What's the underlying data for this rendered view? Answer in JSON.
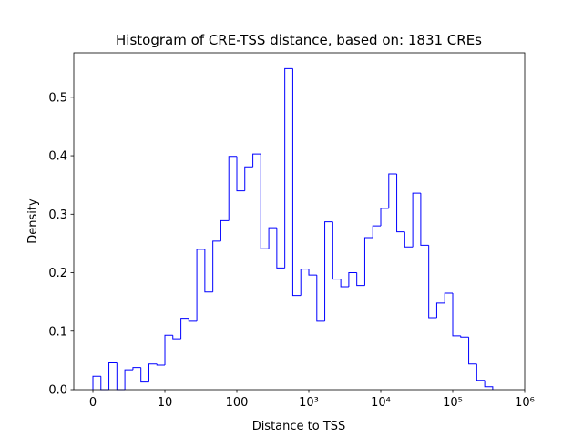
{
  "chart_data": {
    "type": "histogram",
    "title": "Histogram of CRE-TSS distance, based on: 1831 CREs",
    "x_label": "Distance to TSS",
    "y_label": "Density",
    "x_scale": "symlog",
    "linthresh": 10,
    "color": "#0000ff",
    "bins": [
      0,
      1.11,
      2.22,
      3.33,
      4.44,
      5.56,
      6.67,
      7.78,
      8.89,
      10,
      12.9,
      16.7,
      21.5,
      27.8,
      35.9,
      46.4,
      59.9,
      77.4,
      100,
      129,
      167,
      215,
      278,
      359,
      464,
      599,
      774,
      1000,
      1292,
      1668,
      2154,
      2783,
      3594,
      4642,
      5995,
      7743,
      10000,
      12915,
      16681,
      21544,
      27826,
      35938,
      46416,
      59948,
      77426,
      100000,
      129155,
      166810,
      215443,
      278256,
      359381
    ],
    "values": [
      0.023,
      0,
      0.046,
      0,
      0.034,
      0.038,
      0.013,
      0.044,
      0.042,
      0.093,
      0.087,
      0.122,
      0.117,
      0.24,
      0.167,
      0.254,
      0.289,
      0.399,
      0.34,
      0.381,
      0.403,
      0.241,
      0.277,
      0.208,
      0.549,
      0.161,
      0.206,
      0.196,
      0.117,
      0.287,
      0.189,
      0.176,
      0.2,
      0.178,
      0.26,
      0.28,
      0.31,
      0.369,
      0.27,
      0.244,
      0.336,
      0.247,
      0.123,
      0.148,
      0.165,
      0.092,
      0.09,
      0.044,
      0.016,
      0.005
    ],
    "xlim": [
      -2.66,
      1000000
    ],
    "xticks": [
      0,
      10,
      100,
      {
        "value": 1000,
        "label": "10³"
      },
      {
        "value": 10000,
        "label": "10⁴"
      },
      {
        "value": 100000,
        "label": "10⁵"
      },
      {
        "value": 1000000,
        "label": "10⁶"
      }
    ],
    "ylim": [
      0,
      0.576
    ],
    "yticks": [
      {
        "value": 0,
        "label": "0.0"
      },
      0.1,
      0.2,
      0.3,
      0.4,
      0.5
    ]
  }
}
